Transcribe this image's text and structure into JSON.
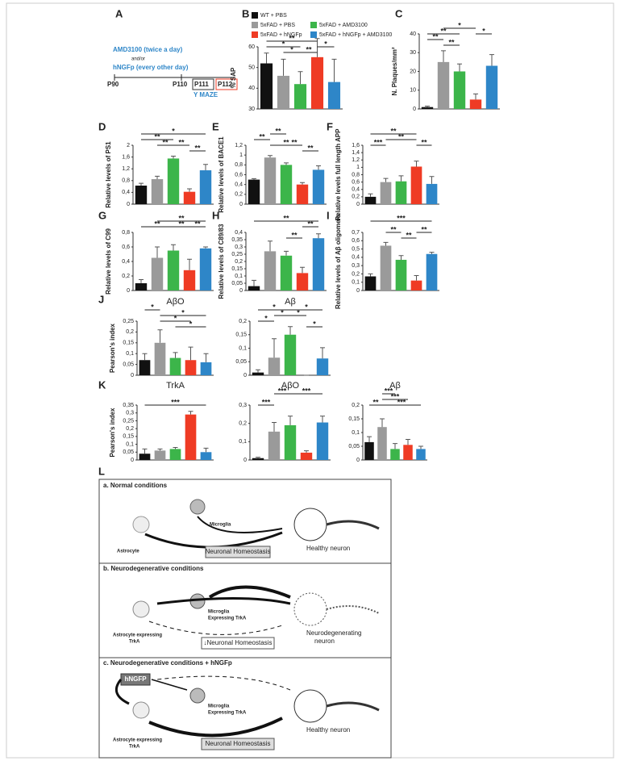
{
  "timeline": {
    "panel": "A",
    "drug1": "AMD3100 (twice a day)",
    "andor": "and/or",
    "drug2": "hNGFp (every other day)",
    "days": [
      "P90",
      "P110",
      "P111",
      "P112"
    ],
    "test": "Y MAZE"
  },
  "chart_data": [
    {
      "type": "bar",
      "panel": "B",
      "ylabel": "% SAP",
      "legend": [
        "WT + PBS",
        "5xFAD + PBS",
        "5xFAD + AMD3100",
        "5xFAD + hNGFp",
        "5xFAD + hNGFp + AMD3100"
      ],
      "colors": [
        "#111111",
        "#9a9a9a",
        "#3cb54a",
        "#ef3b24",
        "#2e86c8"
      ],
      "ylim": [
        30,
        60
      ],
      "yticks": [
        30,
        40,
        50,
        60
      ],
      "values": [
        52,
        46,
        42,
        55,
        43
      ],
      "errors": [
        5,
        8,
        6,
        9,
        11
      ],
      "significance": [
        "*",
        "*",
        "**",
        "**",
        "*"
      ]
    },
    {
      "type": "bar",
      "panel": "C",
      "ylabel": "N. Plaques/mm²",
      "colors": [
        "#111111",
        "#9a9a9a",
        "#3cb54a",
        "#ef3b24",
        "#2e86c8"
      ],
      "ylim": [
        0,
        40
      ],
      "yticks": [
        0,
        10,
        20,
        30,
        40
      ],
      "values": [
        1,
        25,
        20,
        5,
        23
      ],
      "errors": [
        0.5,
        6,
        4,
        3,
        6
      ],
      "significance": [
        "**",
        "**",
        "**",
        "*",
        "*"
      ]
    },
    {
      "type": "bar",
      "panel": "D",
      "ylabel": "Relative levels of PS1",
      "colors": [
        "#111111",
        "#9a9a9a",
        "#3cb54a",
        "#ef3b24",
        "#2e86c8"
      ],
      "ylim": [
        0,
        2
      ],
      "yticks": [
        0,
        {
          "value": 0.4,
          "label": "0,4"
        },
        {
          "value": 0.8,
          "label": "0,8"
        },
        {
          "value": 1.2,
          "label": "1,2"
        },
        {
          "value": 1.6,
          "label": "1,6"
        },
        2
      ],
      "values": [
        0.63,
        0.85,
        1.55,
        0.42,
        1.15
      ],
      "errors": [
        0.08,
        0.1,
        0.08,
        0.1,
        0.2
      ],
      "significance": [
        "*",
        "**",
        "**",
        "**",
        "**"
      ]
    },
    {
      "type": "bar",
      "panel": "E",
      "ylabel": "Relative levels of BACE1",
      "colors": [
        "#111111",
        "#9a9a9a",
        "#3cb54a",
        "#ef3b24",
        "#2e86c8"
      ],
      "ylim": [
        0,
        1.2
      ],
      "yticks": [
        0,
        {
          "value": 0.2,
          "label": "0,2"
        },
        {
          "value": 0.4,
          "label": "0,4"
        },
        {
          "value": 0.6,
          "label": "0,6"
        },
        {
          "value": 0.8,
          "label": "0,8"
        },
        1,
        {
          "value": 1.2,
          "label": "1,2"
        }
      ],
      "values": [
        0.5,
        0.95,
        0.8,
        0.4,
        0.7
      ],
      "errors": [
        0.02,
        0.04,
        0.04,
        0.04,
        0.08
      ],
      "significance": [
        "**",
        "**",
        "**",
        "**",
        "**"
      ]
    },
    {
      "type": "bar",
      "panel": "F",
      "ylabel": "Relative levels full length APP",
      "colors": [
        "#111111",
        "#9a9a9a",
        "#3cb54a",
        "#ef3b24",
        "#2e86c8"
      ],
      "ylim": [
        0,
        1.6
      ],
      "yticks": [
        0,
        {
          "value": 0.2,
          "label": "0,2"
        },
        {
          "value": 0.4,
          "label": "0,4"
        },
        {
          "value": 0.6,
          "label": "0,6"
        },
        {
          "value": 0.8,
          "label": "0,8"
        },
        1,
        {
          "value": 1.2,
          "label": "1,2"
        },
        {
          "value": 1.4,
          "label": "1,4"
        },
        {
          "value": 1.6,
          "label": "1,6"
        }
      ],
      "values": [
        0.2,
        0.6,
        0.62,
        1.02,
        0.55
      ],
      "errors": [
        0.08,
        0.1,
        0.15,
        0.15,
        0.2
      ],
      "significance": [
        "**",
        "***",
        "**",
        "**"
      ]
    },
    {
      "type": "bar",
      "panel": "G",
      "ylabel": "Relative levels of C99",
      "colors": [
        "#111111",
        "#9a9a9a",
        "#3cb54a",
        "#ef3b24",
        "#2e86c8"
      ],
      "ylim": [
        0,
        0.8
      ],
      "yticks": [
        0,
        {
          "value": 0.2,
          "label": "0,2"
        },
        {
          "value": 0.4,
          "label": "0,4"
        },
        {
          "value": 0.6,
          "label": "0,6"
        },
        {
          "value": 0.8,
          "label": "0,8"
        }
      ],
      "values": [
        0.1,
        0.45,
        0.55,
        0.28,
        0.58
      ],
      "errors": [
        0.05,
        0.15,
        0.08,
        0.15,
        0.02
      ],
      "significance": [
        "**",
        "**",
        "**",
        "**"
      ]
    },
    {
      "type": "bar",
      "panel": "H",
      "ylabel": "Relative levels of C89/83",
      "colors": [
        "#111111",
        "#9a9a9a",
        "#3cb54a",
        "#ef3b24",
        "#2e86c8"
      ],
      "ylim": [
        0,
        0.4
      ],
      "yticks": [
        0,
        {
          "value": 0.05,
          "label": "0,05"
        },
        {
          "value": 0.1,
          "label": "0,1"
        },
        {
          "value": 0.15,
          "label": "0,15"
        },
        {
          "value": 0.2,
          "label": "0,2"
        },
        {
          "value": 0.25,
          "label": "0,25"
        },
        {
          "value": 0.3,
          "label": "0,3"
        },
        {
          "value": 0.35,
          "label": "0,35"
        },
        {
          "value": 0.4,
          "label": "0,4"
        }
      ],
      "values": [
        0.03,
        0.27,
        0.24,
        0.12,
        0.36
      ],
      "errors": [
        0.04,
        0.07,
        0.03,
        0.04,
        0.03
      ],
      "significance": [
        "**",
        "**",
        "**"
      ]
    },
    {
      "type": "bar",
      "panel": "I",
      "ylabel": "Relative levels of Aβ oligomers",
      "colors": [
        "#111111",
        "#9a9a9a",
        "#3cb54a",
        "#ef3b24",
        "#2e86c8"
      ],
      "ylim": [
        0,
        0.7
      ],
      "yticks": [
        0,
        {
          "value": 0.1,
          "label": "0,1"
        },
        {
          "value": 0.2,
          "label": "0,2"
        },
        {
          "value": 0.3,
          "label": "0,3"
        },
        {
          "value": 0.4,
          "label": "0,4"
        },
        {
          "value": 0.5,
          "label": "0,5"
        },
        {
          "value": 0.6,
          "label": "0,6"
        },
        {
          "value": 0.7,
          "label": "0,7"
        }
      ],
      "values": [
        0.17,
        0.54,
        0.37,
        0.12,
        0.44
      ],
      "errors": [
        0.03,
        0.04,
        0.05,
        0.06,
        0.02
      ],
      "significance": [
        "***",
        "**",
        "**",
        "**"
      ]
    },
    {
      "type": "bar",
      "panel": "J",
      "title": "AβO",
      "ylabel": "Pearson's index",
      "colors": [
        "#111111",
        "#9a9a9a",
        "#3cb54a",
        "#ef3b24",
        "#2e86c8"
      ],
      "ylim": [
        0,
        0.25
      ],
      "yticks": [
        0,
        {
          "value": 0.05,
          "label": "0,05"
        },
        {
          "value": 0.1,
          "label": "0,1"
        },
        {
          "value": 0.15,
          "label": "0,15"
        },
        {
          "value": 0.2,
          "label": "0,2"
        },
        {
          "value": 0.25,
          "label": "0,25"
        }
      ],
      "values": [
        0.07,
        0.15,
        0.08,
        0.07,
        0.06
      ],
      "errors": [
        0.03,
        0.06,
        0.025,
        0.06,
        0.04
      ],
      "significance": [
        "*",
        "*",
        "*",
        "*"
      ]
    },
    {
      "type": "bar",
      "title": "Aβ",
      "colors": [
        "#111111",
        "#9a9a9a",
        "#3cb54a",
        "#ef3b24",
        "#2e86c8"
      ],
      "ylim": [
        0,
        0.2
      ],
      "yticks": [
        0,
        {
          "value": 0.05,
          "label": "0,05"
        },
        {
          "value": 0.1,
          "label": "0,1"
        },
        {
          "value": 0.15,
          "label": "0,15"
        },
        {
          "value": 0.2,
          "label": "0,2"
        }
      ],
      "values": [
        0.01,
        0.065,
        0.15,
        0,
        0.062
      ],
      "errors": [
        0.01,
        0.07,
        0.03,
        0,
        0.04
      ],
      "significance": [
        "*",
        "*",
        "*",
        "*",
        "*",
        "*"
      ]
    },
    {
      "type": "bar",
      "panel": "K",
      "title": "TrkA",
      "ylabel": "Pearson's index",
      "colors": [
        "#111111",
        "#9a9a9a",
        "#3cb54a",
        "#ef3b24",
        "#2e86c8"
      ],
      "ylim": [
        0,
        0.35
      ],
      "yticks": [
        0,
        {
          "value": 0.05,
          "label": "0,05"
        },
        {
          "value": 0.1,
          "label": "0,1"
        },
        {
          "value": 0.15,
          "label": "0,15"
        },
        {
          "value": 0.2,
          "label": "0,2"
        },
        {
          "value": 0.25,
          "label": "0,25"
        },
        {
          "value": 0.3,
          "label": "0,3"
        },
        {
          "value": 0.35,
          "label": "0,35"
        }
      ],
      "values": [
        0.04,
        0.06,
        0.07,
        0.29,
        0.05
      ],
      "errors": [
        0.03,
        0.01,
        0.01,
        0.02,
        0.025
      ],
      "significance": [
        "***"
      ]
    },
    {
      "type": "bar",
      "title": "AβO",
      "colors": [
        "#111111",
        "#9a9a9a",
        "#3cb54a",
        "#ef3b24",
        "#2e86c8"
      ],
      "ylim": [
        0,
        0.3
      ],
      "yticks": [
        0,
        {
          "value": 0.1,
          "label": "0,1"
        },
        {
          "value": 0.2,
          "label": "0,2"
        },
        {
          "value": 0.3,
          "label": "0,3"
        }
      ],
      "values": [
        0.01,
        0.155,
        0.19,
        0.04,
        0.205
      ],
      "errors": [
        0.005,
        0.05,
        0.05,
        0.01,
        0.035
      ],
      "significance": [
        "***",
        "***",
        "***"
      ]
    },
    {
      "type": "bar",
      "title": "Aβ",
      "colors": [
        "#111111",
        "#9a9a9a",
        "#3cb54a",
        "#ef3b24",
        "#2e86c8"
      ],
      "ylim": [
        0,
        0.2
      ],
      "yticks": [
        0,
        {
          "value": 0.05,
          "label": "0,05"
        },
        {
          "value": 0.1,
          "label": "0,1"
        },
        {
          "value": 0.15,
          "label": "0,15"
        },
        {
          "value": 0.2,
          "label": "0,2"
        }
      ],
      "values": [
        0.065,
        0.12,
        0.04,
        0.055,
        0.04
      ],
      "errors": [
        0.02,
        0.03,
        0.02,
        0.02,
        0.01
      ],
      "significance": [
        "**",
        "***",
        "***",
        "***"
      ]
    }
  ],
  "diagram": {
    "panel": "L",
    "a": {
      "title": "a. Normal conditions",
      "astrocyte": "Astrocyte",
      "microglia": "Microglia",
      "homeostasis": "Neuronal Homeostasis",
      "neuron": "Healthy neuron"
    },
    "b": {
      "title": "b. Neurodegenerative conditions",
      "microglia": [
        "Microglia",
        "Expressing TrkA"
      ],
      "astrocyte": [
        "Astrocyte expressing",
        "TrkA"
      ],
      "homeostasis": "↓Neuronal Homeostasis",
      "neuron": [
        "Neurodegenerating",
        "neuron"
      ]
    },
    "c": {
      "title": "c. Neurodegenerative conditions + hNGFp",
      "drug": "hNGFP",
      "microglia": [
        "Microglia",
        "Expressing TrkA"
      ],
      "astrocyte": [
        "Astrocyte expressing",
        "TrkA"
      ],
      "homeostasis": "Neuronal Homeostasis",
      "neuron": "Healthy neuron"
    }
  }
}
